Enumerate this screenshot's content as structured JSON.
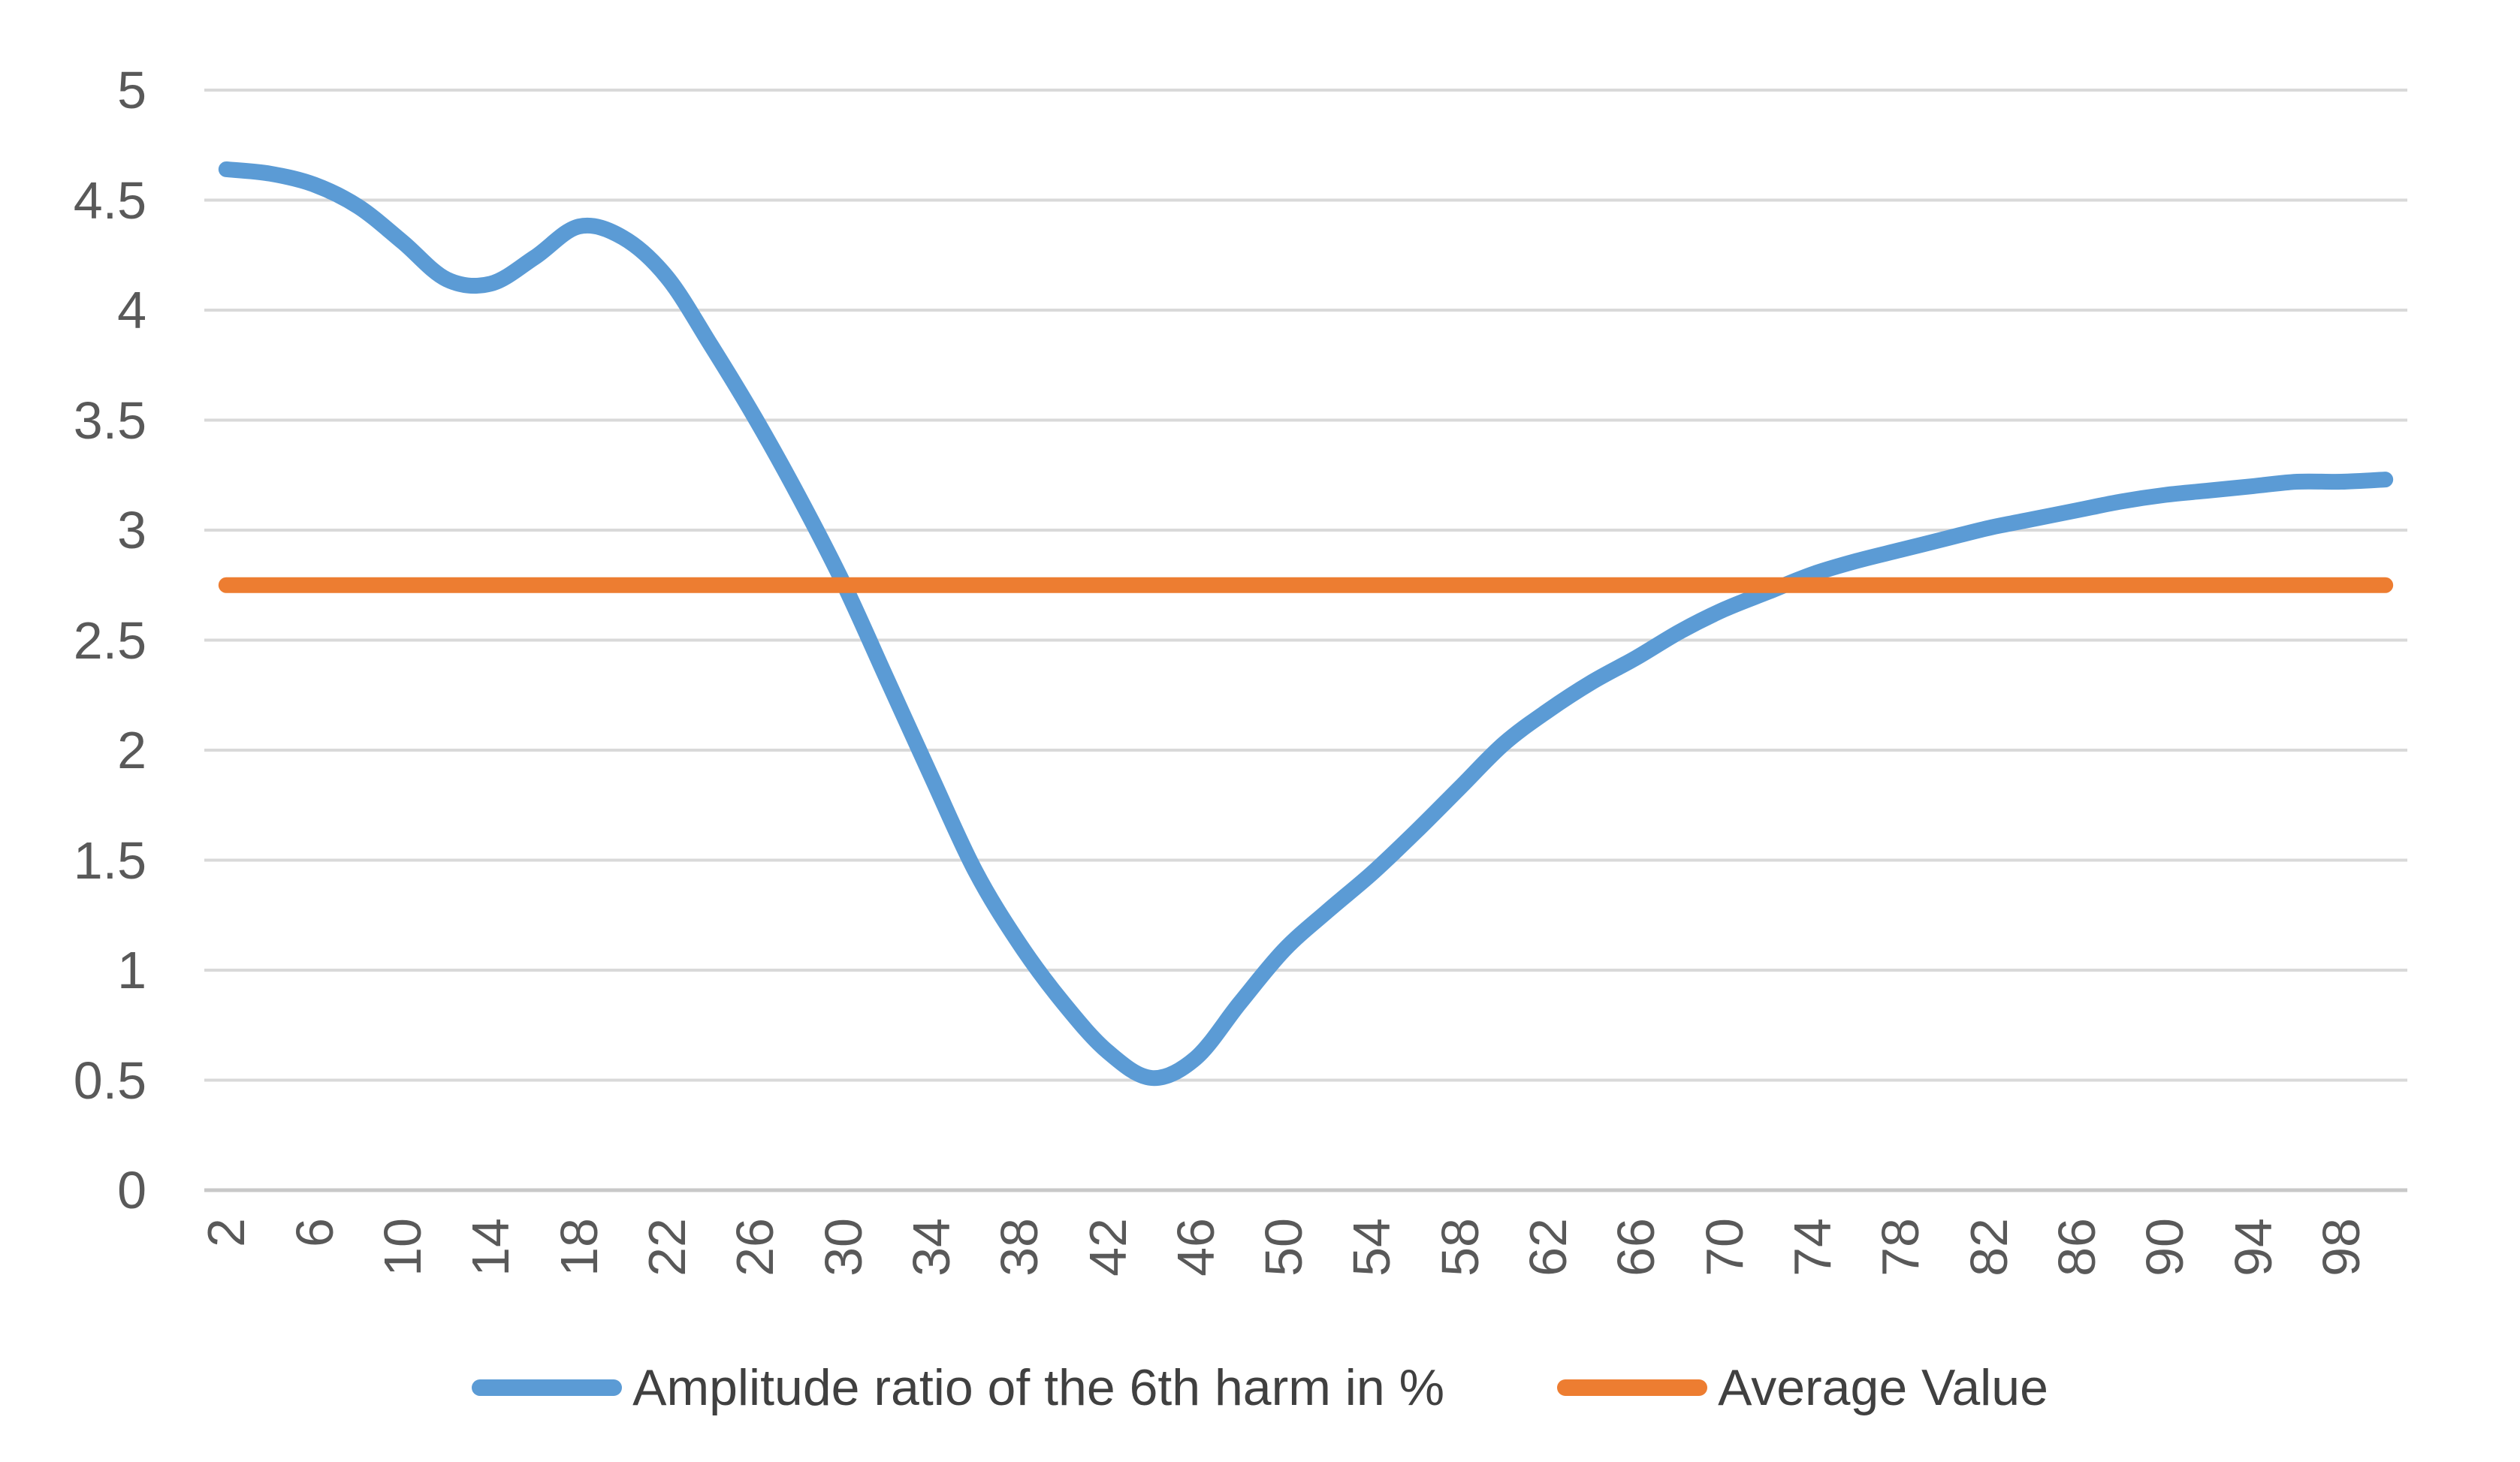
{
  "chart_data": {
    "type": "line",
    "x": [
      2,
      4,
      6,
      8,
      10,
      12,
      14,
      16,
      18,
      20,
      22,
      24,
      26,
      28,
      30,
      32,
      34,
      36,
      38,
      40,
      42,
      44,
      46,
      48,
      50,
      52,
      54,
      56,
      58,
      60,
      62,
      64,
      66,
      68,
      70,
      72,
      74,
      76,
      78,
      80,
      82,
      84,
      86,
      88,
      90,
      92,
      94,
      96,
      98,
      100
    ],
    "series": [
      {
        "name": "Amplitude ratio of the 6th harm in %",
        "color": "#5B9BD5",
        "smooth": true,
        "values": [
          4.64,
          4.62,
          4.57,
          4.47,
          4.31,
          4.14,
          4.12,
          4.24,
          4.38,
          4.33,
          4.15,
          3.84,
          3.51,
          3.15,
          2.76,
          2.32,
          1.88,
          1.45,
          1.12,
          0.85,
          0.63,
          0.51,
          0.6,
          0.85,
          1.09,
          1.27,
          1.44,
          1.63,
          1.83,
          2.03,
          2.18,
          2.31,
          2.42,
          2.54,
          2.64,
          2.72,
          2.8,
          2.86,
          2.91,
          2.96,
          3.01,
          3.05,
          3.09,
          3.13,
          3.16,
          3.18,
          3.2,
          3.22,
          3.22,
          3.23
        ]
      },
      {
        "name": "Average Value",
        "color": "#ED7D31",
        "constant": 2.75
      }
    ],
    "title": "",
    "xlabel": "",
    "ylabel": "",
    "ylim": [
      0,
      5
    ],
    "ytick_step": 0.5,
    "y_tick_labels": [
      "5",
      "4.5",
      "4",
      "3.5",
      "3",
      "2.5",
      "2",
      "1.5",
      "1",
      "0.5",
      "0"
    ],
    "x_tick_labels": [
      "2",
      "6",
      "10",
      "14",
      "18",
      "22",
      "26",
      "30",
      "34",
      "38",
      "42",
      "46",
      "50",
      "54",
      "58",
      "62",
      "66",
      "70",
      "74",
      "78",
      "82",
      "86",
      "90",
      "94",
      "98"
    ],
    "x_label_every_n_points": 2,
    "grid": "horizontal",
    "legend_position": "bottom",
    "colors": {
      "gridline": "#D9D9D9",
      "axis_line": "#C8C8C8",
      "tick_text": "#595959",
      "legend_text": "#404040"
    }
  }
}
